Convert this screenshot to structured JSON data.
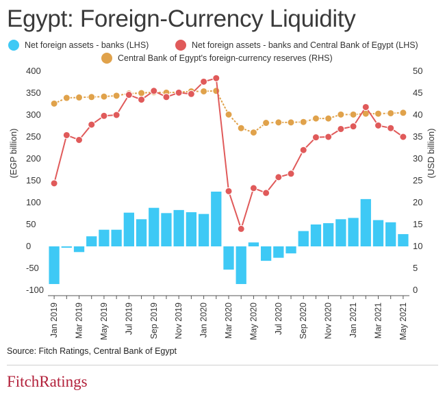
{
  "title": "Egypt: Foreign-Currency Liquidity",
  "source": "Source: Fitch Ratings, Central Bank of Egypt",
  "brand": "FitchRatings",
  "colors": {
    "bars": "#3ec9f5",
    "net_cbe": "#e05a5a",
    "reserves": "#e0a24b",
    "axis_text": "#333333"
  },
  "chart_data": {
    "type": "bar+line",
    "x": [
      "Jan 2019",
      "Feb 2019",
      "Mar 2019",
      "Apr 2019",
      "May 2019",
      "Jun 2019",
      "Jul 2019",
      "Aug 2019",
      "Sep 2019",
      "Oct 2019",
      "Nov 2019",
      "Dec 2019",
      "Jan 2020",
      "Feb 2020",
      "Mar 2020",
      "Apr 2020",
      "May 2020",
      "Jun 2020",
      "Jul 2020",
      "Aug 2020",
      "Sep 2020",
      "Oct 2020",
      "Nov 2020",
      "Dec 2020",
      "Jan 2021",
      "Feb 2021",
      "Mar 2021",
      "Apr 2021",
      "May 2021"
    ],
    "tick_labels": [
      "Jan 2019",
      "Mar 2019",
      "May 2019",
      "Jul 2019",
      "Sep 2019",
      "Nov 2019",
      "Jan 2020",
      "Mar 2020",
      "May 2020",
      "Jul 2020",
      "Sep 2020",
      "Nov 2020",
      "Jan 2021",
      "Mar 2021",
      "May 2021"
    ],
    "series": [
      {
        "name": "Net foreign assets - banks (LHS)",
        "type": "bar",
        "axis": "left",
        "values": [
          -86,
          -3,
          -13,
          23,
          38,
          38,
          77,
          62,
          88,
          76,
          83,
          78,
          74,
          125,
          -53,
          -86,
          9,
          -33,
          -26,
          -16,
          35,
          50,
          53,
          62,
          65,
          108,
          60,
          55,
          28
        ]
      },
      {
        "name": "Net foreign assets - banks and Central Bank of Egypt (LHS)",
        "type": "line",
        "axis": "left",
        "values": [
          144,
          254,
          243,
          278,
          298,
          300,
          346,
          335,
          355,
          341,
          351,
          348,
          376,
          384,
          126,
          40,
          133,
          122,
          158,
          166,
          220,
          249,
          250,
          268,
          274,
          318,
          276,
          270,
          250
        ]
      },
      {
        "name": "Central Bank of Egypt's foreign-currency reserves (RHS)",
        "type": "line",
        "axis": "right",
        "values": [
          42.6,
          43.9,
          44.0,
          44.1,
          44.2,
          44.4,
          44.9,
          45.0,
          45.2,
          45.1,
          45.2,
          45.4,
          45.4,
          45.5,
          40.1,
          37.0,
          36.0,
          38.2,
          38.3,
          38.3,
          38.4,
          39.2,
          39.2,
          40.1,
          40.1,
          40.3,
          40.3,
          40.4,
          40.5
        ]
      }
    ],
    "ylabel_left": "(EGP billion)",
    "ylabel_right": "(USD billion)",
    "ylim_left": [
      -100,
      400
    ],
    "ylim_right": [
      0,
      50
    ],
    "yticks_left": [
      "-100",
      "-50",
      "0",
      "50",
      "100",
      "150",
      "200",
      "250",
      "300",
      "350",
      "400"
    ],
    "yticks_right": [
      "0",
      "5",
      "10",
      "15",
      "20",
      "25",
      "30",
      "35",
      "40",
      "45",
      "50"
    ],
    "grid": false,
    "legend_position": "top"
  }
}
